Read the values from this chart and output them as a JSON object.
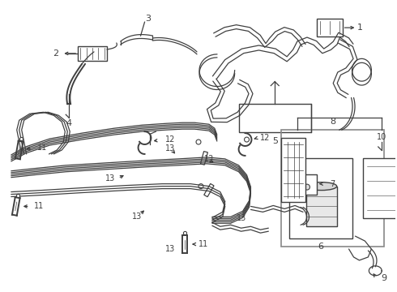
{
  "bg_color": "#ffffff",
  "line_color": "#404040",
  "label_color": "#000000",
  "figsize": [
    4.9,
    3.6
  ],
  "dpi": 100,
  "lw_main": 1.4,
  "lw_thin": 0.9,
  "lw_thick": 2.0
}
